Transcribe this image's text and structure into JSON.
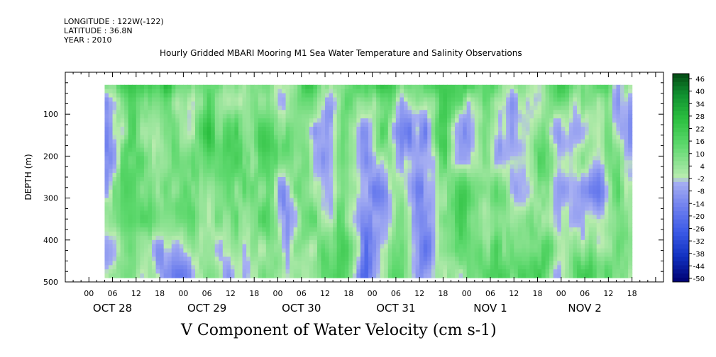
{
  "header": {
    "longitude": "LONGITUDE : 122W(-122)",
    "latitude": "LATITUDE : 36.8N",
    "year": "YEAR : 2010"
  },
  "chart_data": {
    "type": "heatmap",
    "title": "Hourly Gridded MBARI Mooring M1 Sea Water Temperature and Salinity Observations",
    "xlabel": "V Component of Water Velocity (cm s-1)",
    "ylabel": "DEPTH (m)",
    "ylim": [
      500,
      0
    ],
    "y_ticks": [
      100,
      200,
      300,
      400,
      500
    ],
    "y_range_data": [
      30,
      490
    ],
    "x_range_hours": [
      4,
      138
    ],
    "x_hour_ticks": [
      "00",
      "06",
      "12",
      "18",
      "00",
      "06",
      "12",
      "18",
      "00",
      "06",
      "12",
      "18",
      "00",
      "06",
      "12",
      "18",
      "00",
      "06",
      "12",
      "18",
      "00",
      "06",
      "12",
      "18"
    ],
    "x_day_labels": [
      "OCT 28",
      "OCT 29",
      "OCT 30",
      "OCT 31",
      "NOV  1",
      "NOV  2"
    ],
    "colorbar": {
      "labels": [
        "46",
        "40",
        "34",
        "28",
        "22",
        "16",
        "10",
        "4",
        "-2",
        "-8",
        "-14",
        "-20",
        "-26",
        "-32",
        "-38",
        "-44",
        "-50"
      ],
      "min": -50,
      "max": 50
    },
    "colors": {
      "strong_negative": "#000080",
      "negative": "#3c5ae6",
      "weak_negative": "#9fa8f0",
      "weak_positive": "#a8e8a0",
      "positive": "#3cd050",
      "strong_positive": "#0a5014"
    }
  }
}
